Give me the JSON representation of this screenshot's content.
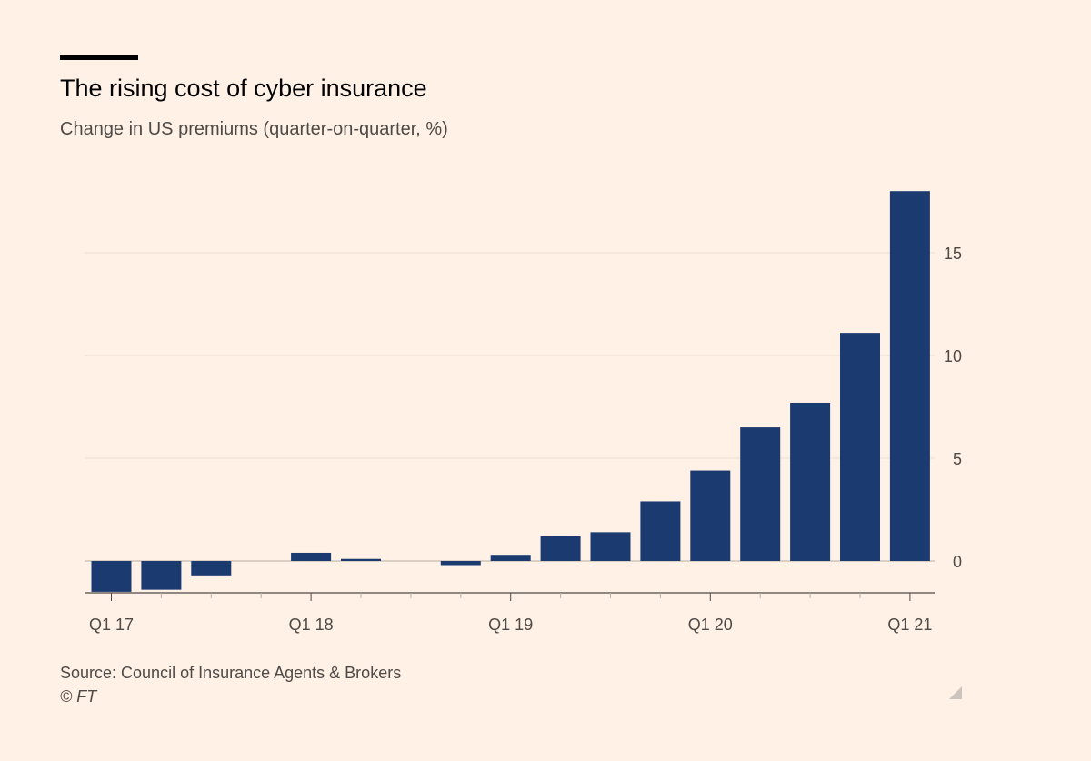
{
  "header": {
    "title": "The rising cost of cyber insurance",
    "subtitle": "Change in US premiums (quarter-on-quarter, %)"
  },
  "footer": {
    "source": "Source: Council of Insurance Agents & Brokers",
    "copyright": "© FT"
  },
  "colors": {
    "background": "#fff1e5",
    "bar": "#1b3a6f",
    "gridline": "#e8ddd2",
    "axis": "#4f4a47",
    "text": "#4f4a47"
  },
  "chart_data": {
    "type": "bar",
    "title": "The rising cost of cyber insurance",
    "subtitle": "Change in US premiums (quarter-on-quarter, %)",
    "categories": [
      "Q1 17",
      "Q2 17",
      "Q3 17",
      "Q4 17",
      "Q1 18",
      "Q2 18",
      "Q3 18",
      "Q4 18",
      "Q1 19",
      "Q2 19",
      "Q3 19",
      "Q4 19",
      "Q1 20",
      "Q2 20",
      "Q3 20",
      "Q4 20",
      "Q1 21"
    ],
    "values": [
      -1.5,
      -1.4,
      -0.7,
      0,
      0.4,
      0.1,
      0,
      -0.2,
      0.3,
      1.2,
      1.4,
      2.9,
      4.4,
      6.5,
      7.7,
      11.1,
      18.0
    ],
    "x_tick_labels": [
      "Q1 17",
      "Q1 18",
      "Q1 19",
      "Q1 20",
      "Q1 21"
    ],
    "y_ticks": [
      0,
      5,
      10,
      15
    ],
    "ylim": [
      -1.5,
      18
    ],
    "y_axis_position": "right",
    "grid": true,
    "legend": "none"
  }
}
